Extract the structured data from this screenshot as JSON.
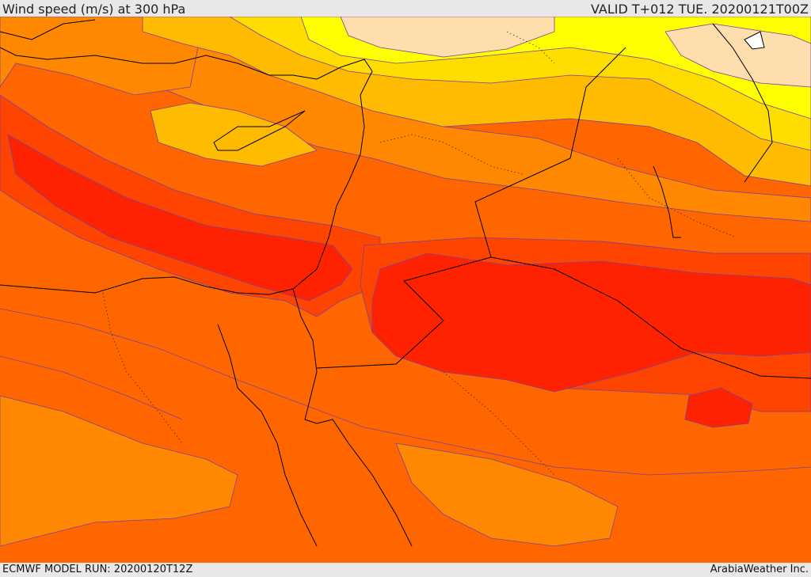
{
  "header": {
    "title": "Wind speed (m/s) at 300 hPa",
    "valid_label": "VALID T+012 TUE. 20200121T00Z"
  },
  "footer": {
    "model_run": "ECMWF MODEL RUN: 20200120T12Z",
    "credit": "ArabiaWeather Inc."
  },
  "map": {
    "field": "wind speed at 300 hPa",
    "fill_colors": [
      "#ffdead",
      "#ffff00",
      "#ffdd00",
      "#ffbb00",
      "#ff8800",
      "#ff6600",
      "#ff4400",
      "#ff2200"
    ],
    "contour_color": "#6a3fa0",
    "coastline_color": "#000000"
  }
}
